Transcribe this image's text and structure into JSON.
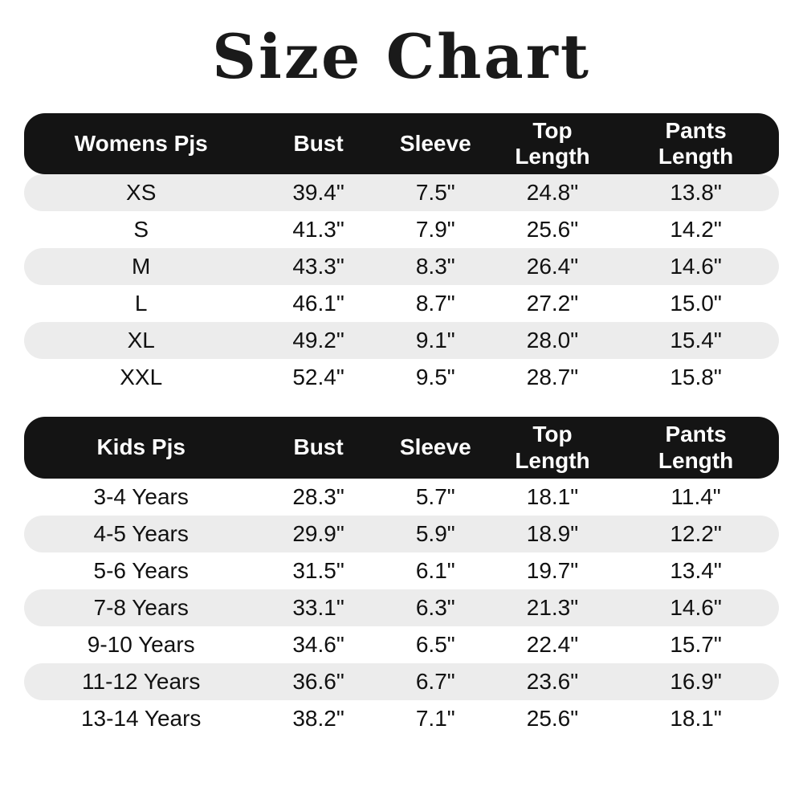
{
  "title": "Size Chart",
  "colors": {
    "header_bg": "#141414",
    "header_text": "#ffffff",
    "row_alt": "#ececec",
    "text": "#111111"
  },
  "chart_data": [
    {
      "type": "table",
      "title": "Womens Pjs",
      "columns": [
        "Womens Pjs",
        "Bust",
        "Sleeve",
        "Top Length",
        "Pants Length"
      ],
      "shade_first_row": true,
      "rows": [
        [
          "XS",
          "39.4\"",
          "7.5\"",
          "24.8\"",
          "13.8\""
        ],
        [
          "S",
          "41.3\"",
          "7.9\"",
          "25.6\"",
          "14.2\""
        ],
        [
          "M",
          "43.3\"",
          "8.3\"",
          "26.4\"",
          "14.6\""
        ],
        [
          "L",
          "46.1\"",
          "8.7\"",
          "27.2\"",
          "15.0\""
        ],
        [
          "XL",
          "49.2\"",
          "9.1\"",
          "28.0\"",
          "15.4\""
        ],
        [
          "XXL",
          "52.4\"",
          "9.5\"",
          "28.7\"",
          "15.8\""
        ]
      ]
    },
    {
      "type": "table",
      "title": "Kids Pjs",
      "columns": [
        "Kids Pjs",
        "Bust",
        "Sleeve",
        "Top Length",
        "Pants Length"
      ],
      "shade_first_row": false,
      "rows": [
        [
          "3-4 Years",
          "28.3\"",
          "5.7\"",
          "18.1\"",
          "11.4\""
        ],
        [
          "4-5 Years",
          "29.9\"",
          "5.9\"",
          "18.9\"",
          "12.2\""
        ],
        [
          "5-6 Years",
          "31.5\"",
          "6.1\"",
          "19.7\"",
          "13.4\""
        ],
        [
          "7-8 Years",
          "33.1\"",
          "6.3\"",
          "21.3\"",
          "14.6\""
        ],
        [
          "9-10 Years",
          "34.6\"",
          "6.5\"",
          "22.4\"",
          "15.7\""
        ],
        [
          "11-12 Years",
          "36.6\"",
          "6.7\"",
          "23.6\"",
          "16.9\""
        ],
        [
          "13-14 Years",
          "38.2\"",
          "7.1\"",
          "25.6\"",
          "18.1\""
        ]
      ]
    }
  ]
}
